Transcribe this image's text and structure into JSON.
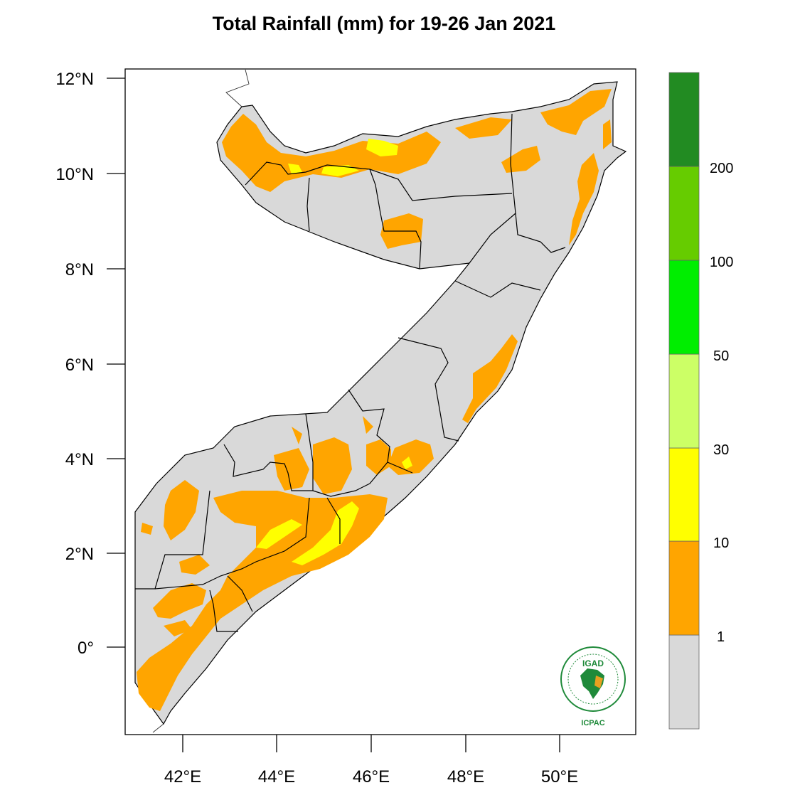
{
  "title": "Total Rainfall (mm) for 19-26 Jan 2021",
  "map": {
    "lat_ticks": [
      {
        "label": "12°N"
      },
      {
        "label": "10°N"
      },
      {
        "label": "8°N"
      },
      {
        "label": "6°N"
      },
      {
        "label": "4°N"
      },
      {
        "label": "2°N"
      },
      {
        "label": "0°"
      }
    ],
    "lon_ticks": [
      {
        "label": "42°E"
      },
      {
        "label": "44°E"
      },
      {
        "label": "46°E"
      },
      {
        "label": "48°E"
      },
      {
        "label": "50°E"
      }
    ]
  },
  "colorbar": {
    "classes": [
      {
        "range": "<1",
        "color": "#d9d9d9"
      },
      {
        "range": "1-10",
        "color": "#ffa500"
      },
      {
        "range": "10-30",
        "color": "#ffff00"
      },
      {
        "range": "30-50",
        "color": "#ccff66"
      },
      {
        "range": "50-100",
        "color": "#00ee00"
      },
      {
        "range": "100-200",
        "color": "#66cc00"
      },
      {
        "range": ">200",
        "color": "#228b22"
      }
    ],
    "labels": [
      "1",
      "10",
      "30",
      "50",
      "100",
      "200"
    ]
  },
  "logo": {
    "name": "IGAD",
    "org": "ICPAC"
  }
}
